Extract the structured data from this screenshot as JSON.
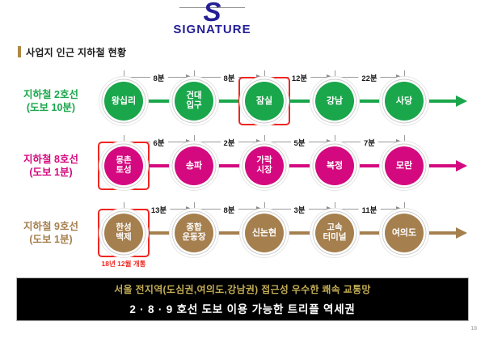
{
  "logo": {
    "mark": "S",
    "name": "SIGNATURE"
  },
  "header": {
    "title": "사업지 인근 지하철 현황"
  },
  "colors": {
    "line2": "#1aa64b",
    "line8": "#d4097f",
    "line9": "#a57f4e",
    "highlight_red": "#ee2621",
    "logo_navy": "#241f96",
    "banner_gold": "#c3ad55",
    "title_accent": "#ad8a45"
  },
  "lines": [
    {
      "label": "지하철 2호선\n(도보 10분)",
      "color": "#1aa64b",
      "stations": [
        {
          "name": "왕십리",
          "highlighted": false
        },
        {
          "name": "건대\n입구",
          "highlighted": false
        },
        {
          "name": "잠실",
          "highlighted": true
        },
        {
          "name": "강남",
          "highlighted": false
        },
        {
          "name": "사당",
          "highlighted": false
        }
      ],
      "travel_times": [
        "8분",
        "8분",
        "12분",
        "22분"
      ]
    },
    {
      "label": "지하철 8호선\n(도보 1분)",
      "color": "#d4097f",
      "stations": [
        {
          "name": "몽촌\n토성",
          "highlighted": true
        },
        {
          "name": "송파",
          "highlighted": false
        },
        {
          "name": "가락\n시장",
          "highlighted": false
        },
        {
          "name": "복정",
          "highlighted": false
        },
        {
          "name": "모란",
          "highlighted": false
        }
      ],
      "travel_times": [
        "6분",
        "2분",
        "5분",
        "7분"
      ]
    },
    {
      "label": "지하철 9호선\n(도보 1분)",
      "color": "#a57f4e",
      "stations": [
        {
          "name": "한성\n백제",
          "highlighted": true,
          "note": "18년 12월 개통"
        },
        {
          "name": "종합\n운동장",
          "highlighted": false
        },
        {
          "name": "신논현",
          "highlighted": false
        },
        {
          "name": "고속\n터미널",
          "highlighted": false
        },
        {
          "name": "여의도",
          "highlighted": false
        }
      ],
      "travel_times": [
        "13분",
        "8분",
        "3분",
        "11분"
      ]
    }
  ],
  "banner": {
    "line1": "서울 전지역(도심권,여의도,강남권) 접근성 우수한 쾌속 교통망",
    "line2": "2 · 8 · 9 호선 도보 이용 가능한 트리플 역세권"
  },
  "page_number": "18"
}
